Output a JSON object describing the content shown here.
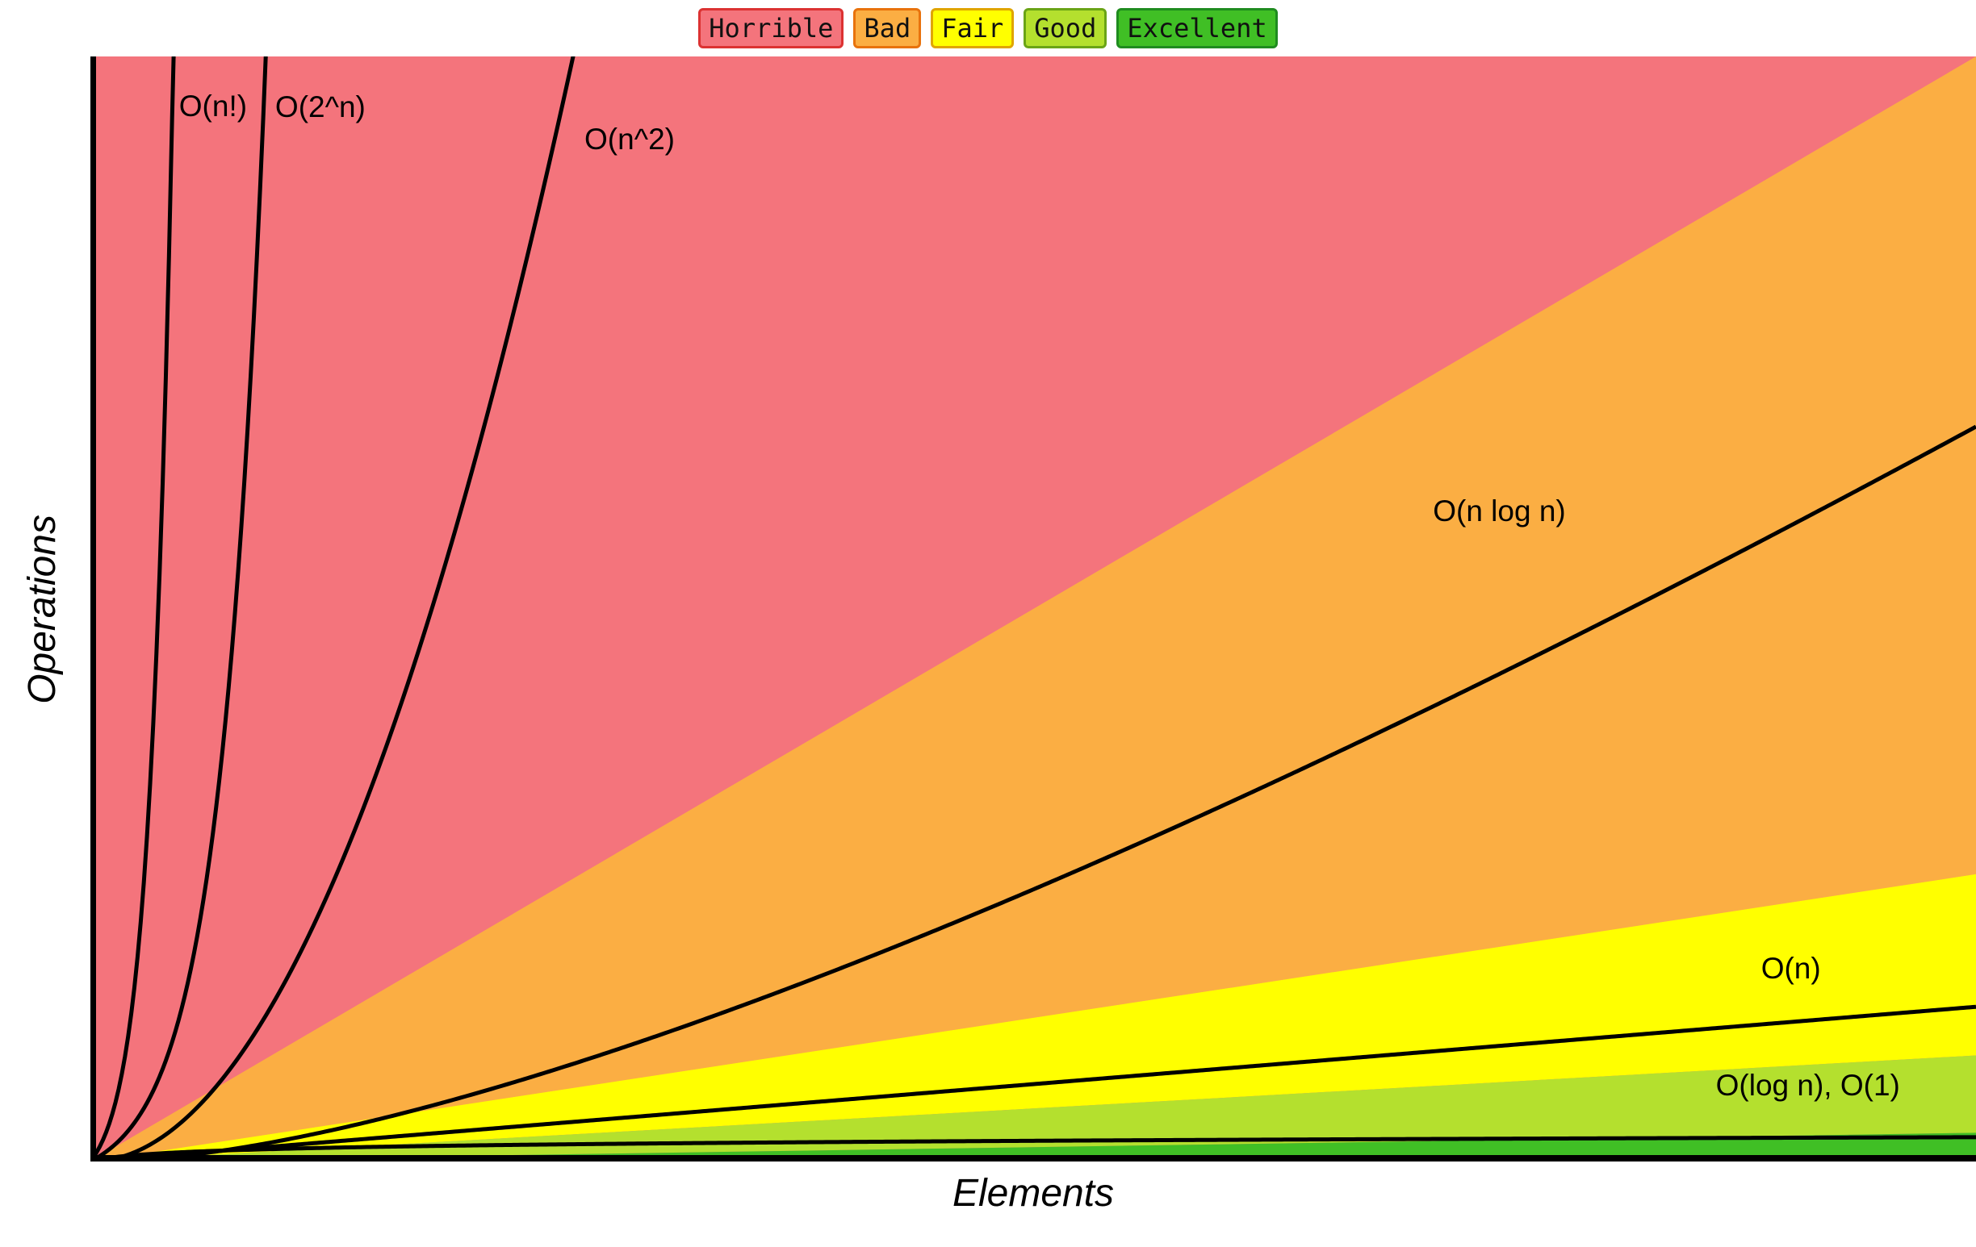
{
  "page": {
    "background": "#ffffff"
  },
  "legend": {
    "items": [
      {
        "label": "Horrible",
        "bg": "#f4747c",
        "border": "#dc3232"
      },
      {
        "label": "Bad",
        "bg": "#fbae43",
        "border": "#e8720c"
      },
      {
        "label": "Fair",
        "bg": "#ffff00",
        "border": "#e0a500"
      },
      {
        "label": "Good",
        "bg": "#b4e02e",
        "border": "#6aa416"
      },
      {
        "label": "Excellent",
        "bg": "#40bf25",
        "border": "#1f8c1f"
      }
    ]
  },
  "chart_data": {
    "type": "line",
    "title": "",
    "xlabel": "Elements",
    "ylabel": "Operations",
    "x_range": [
      0,
      1
    ],
    "y_range": [
      0,
      1
    ],
    "grid": false,
    "legend_position": "top-center",
    "axes_ticks": "none",
    "regions": {
      "background_label": "Horrible",
      "background": "#f4747c",
      "wedges": [
        {
          "label": "Bad",
          "color": "#fbae43",
          "top_slope": 1.0,
          "bottom_slope": 0.26
        },
        {
          "label": "Fair",
          "color": "#ffff00",
          "top_slope": 0.26,
          "bottom_slope": 0.096
        },
        {
          "label": "Good",
          "color": "#b4e02e",
          "top_slope": 0.096,
          "bottom_slope": 0.026
        },
        {
          "label": "Excellent",
          "color": "#40bf25",
          "top_slope": 0.026,
          "bottom_slope": 0.0
        }
      ]
    },
    "curves": [
      {
        "id": "n-factorial",
        "label": "O(n!)",
        "type": "exp",
        "k": 120,
        "x_top": 0.044
      },
      {
        "id": "2-pow-n",
        "label": "O(2^n)",
        "type": "exp",
        "k": 60,
        "x_top": 0.093
      },
      {
        "id": "n-squared",
        "label": "O(n^2)",
        "type": "power",
        "exponent": 2,
        "x_top": 0.256
      },
      {
        "id": "n-log-n",
        "label": "O(n log n)",
        "type": "nlogn",
        "y_end": 0.665
      },
      {
        "id": "n",
        "label": "O(n)",
        "type": "linear",
        "y_end": 0.14
      },
      {
        "id": "log-n",
        "label": "O(log n)",
        "type": "log",
        "y_end": 0.022
      },
      {
        "id": "constant",
        "label": "O(1)",
        "type": "const",
        "y_end": 0.004
      }
    ],
    "curve_labels": [
      {
        "text": "O(n!)",
        "x": 0.047,
        "y": 0.03
      },
      {
        "text": "O(2^n)",
        "x": 0.098,
        "y": 0.031
      },
      {
        "text": "O(n^2)",
        "x": 0.262,
        "y": 0.06
      },
      {
        "text": "O(n log n)",
        "x": 0.712,
        "y": 0.396
      },
      {
        "text": "O(n)",
        "x": 0.886,
        "y": 0.81
      },
      {
        "text": "O(log n), O(1)",
        "x": 0.862,
        "y": 0.916
      }
    ]
  }
}
